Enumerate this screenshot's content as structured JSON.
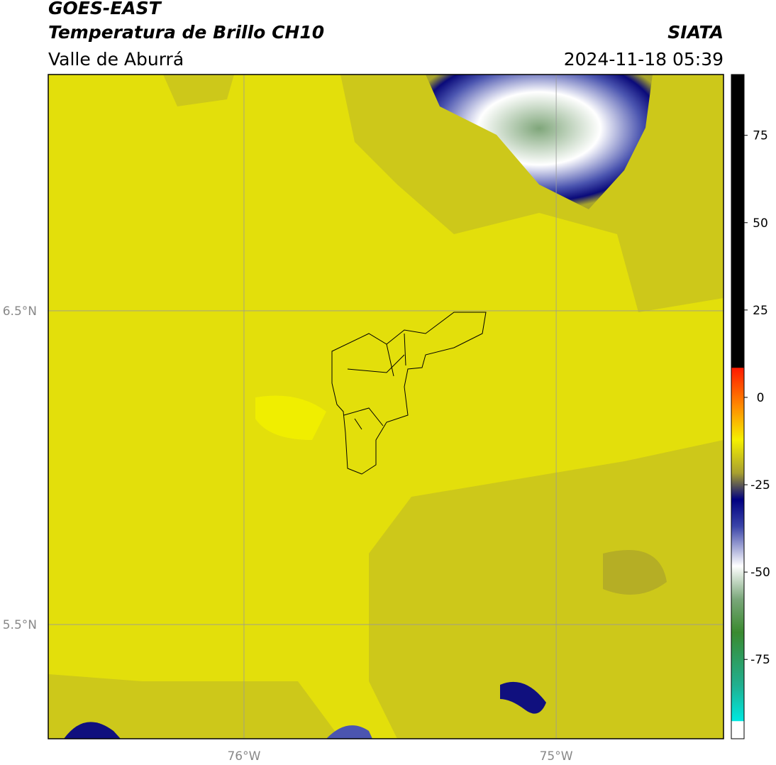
{
  "header": {
    "title": "GOES-EAST",
    "subtitle": "Temperatura de Brillo CH10",
    "region": "Valle de Aburrá",
    "source": "SIATA",
    "datetime": "2024-11-18 05:39"
  },
  "map": {
    "lonlim": [
      -76.627,
      -74.464
    ],
    "latlim": [
      5.136,
      7.253
    ],
    "lon_ticks": [
      {
        "value": -76,
        "label": "76°W"
      },
      {
        "value": -75,
        "label": "75°W"
      }
    ],
    "lat_ticks": [
      {
        "value": 6.5,
        "label": "6.5°N"
      },
      {
        "value": 5.5,
        "label": "5.5°N"
      }
    ]
  },
  "colorbar": {
    "lim": [
      -97.7,
      92.4
    ],
    "ticks": [
      75,
      50,
      25,
      0,
      -25,
      -50,
      -75
    ]
  }
}
